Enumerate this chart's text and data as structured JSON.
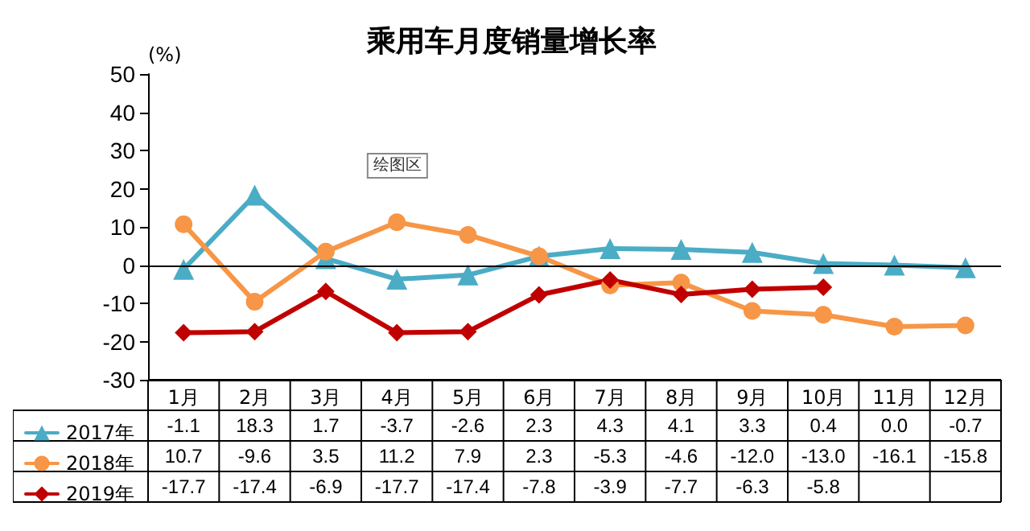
{
  "chart_data": {
    "type": "line",
    "title": "乘用车月度销量增长率",
    "ylabel": "(%)",
    "categories": [
      "1月",
      "2月",
      "3月",
      "4月",
      "5月",
      "6月",
      "7月",
      "8月",
      "9月",
      "10月",
      "11月",
      "12月"
    ],
    "ylim": [
      -30,
      50
    ],
    "yticks": [
      -30,
      -20,
      -10,
      0,
      10,
      20,
      30,
      40,
      50
    ],
    "grid": false,
    "legend": "bottom",
    "line_style": "solid",
    "annotations": [
      "绘图区"
    ],
    "ref_lines": [
      {
        "axis": "y",
        "value": 0,
        "color": "#000000"
      }
    ],
    "series": [
      {
        "name": "2017年",
        "color": "#4bacc6",
        "marker": "triangle",
        "values": [
          -1.1,
          18.3,
          1.7,
          -3.7,
          -2.6,
          2.3,
          4.3,
          4.1,
          3.3,
          0.4,
          0.0,
          -0.7
        ],
        "value_labels": [
          "-1.1",
          "18.3",
          "1.7",
          "-3.7",
          "-2.6",
          "2.3",
          "4.3",
          "4.1",
          "3.3",
          "0.4",
          "0.0",
          "-0.7"
        ]
      },
      {
        "name": "2018年",
        "color": "#f79646",
        "marker": "circle",
        "values": [
          10.7,
          -9.6,
          3.5,
          11.2,
          7.9,
          2.3,
          -5.3,
          -4.6,
          -12.0,
          -13.0,
          -16.1,
          -15.8
        ],
        "value_labels": [
          "10.7",
          "-9.6",
          "3.5",
          "11.2",
          "7.9",
          "2.3",
          "-5.3",
          "-4.6",
          "-12.0",
          "-13.0",
          "-16.1",
          "-15.8"
        ]
      },
      {
        "name": "2019年",
        "color": "#c00000",
        "marker": "diamond",
        "values": [
          -17.7,
          -17.4,
          -6.9,
          -17.7,
          -17.4,
          -7.8,
          -3.9,
          -7.7,
          -6.3,
          -5.8,
          null,
          null
        ],
        "value_labels": [
          "-17.7",
          "-17.4",
          "-6.9",
          "-17.7",
          "-17.4",
          "-7.8",
          "-3.9",
          "-7.7",
          "-6.3",
          "-5.8",
          null,
          null
        ]
      }
    ]
  }
}
